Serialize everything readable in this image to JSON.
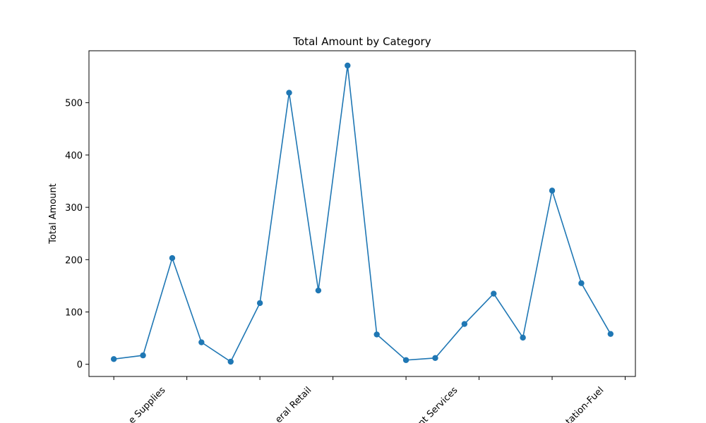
{
  "chart_data": {
    "type": "line",
    "title": "Total Amount by Category",
    "ylabel": "Total Amount",
    "x": [
      0,
      1,
      2,
      3,
      4,
      5,
      6,
      7,
      8,
      9,
      10,
      11,
      12,
      13,
      14,
      15,
      16,
      17
    ],
    "series": [
      {
        "name": "Total Amount",
        "color": "#1f77b4",
        "values": [
          10,
          17,
          203,
          42,
          5,
          117,
          519,
          141,
          571,
          57,
          8,
          12,
          77,
          135,
          51,
          332,
          155,
          58
        ]
      }
    ],
    "xlim": [
      -0.85,
      17.85
    ],
    "xticks": [
      0,
      2.5,
      5,
      7.5,
      10,
      12.5,
      15,
      17.5
    ],
    "xtick_labels": [
      null,
      "e Supplies",
      null,
      "eral Retail",
      null,
      "nt Services",
      null,
      "tation-Fuel"
    ],
    "ylim": [
      -23.3,
      599.3
    ],
    "yticks": [
      0,
      100,
      200,
      300,
      400,
      500
    ],
    "grid": false
  }
}
